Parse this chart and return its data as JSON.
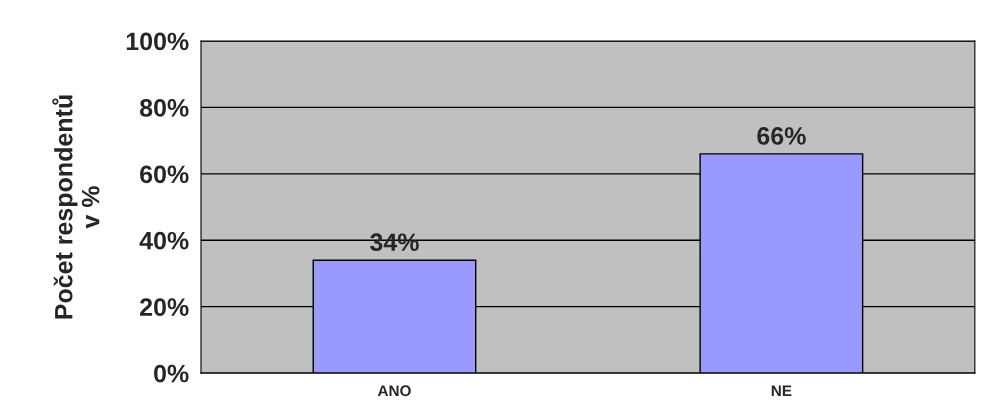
{
  "chart_data": {
    "type": "bar",
    "categories": [
      "ANO",
      "NE"
    ],
    "values": [
      34,
      66
    ],
    "color": "#9999ff",
    "value_labels": [
      "34%",
      "66%"
    ],
    "ylabel": "Počet respondentů\nv %",
    "ylim": [
      0,
      100
    ],
    "yticks": [
      {
        "value": 0,
        "label": "0%"
      },
      {
        "value": 20,
        "label": "20%"
      },
      {
        "value": 40,
        "label": "40%"
      },
      {
        "value": 60,
        "label": "60%"
      },
      {
        "value": 80,
        "label": "80%"
      },
      {
        "value": 100,
        "label": "100%"
      }
    ],
    "grid": "y"
  }
}
